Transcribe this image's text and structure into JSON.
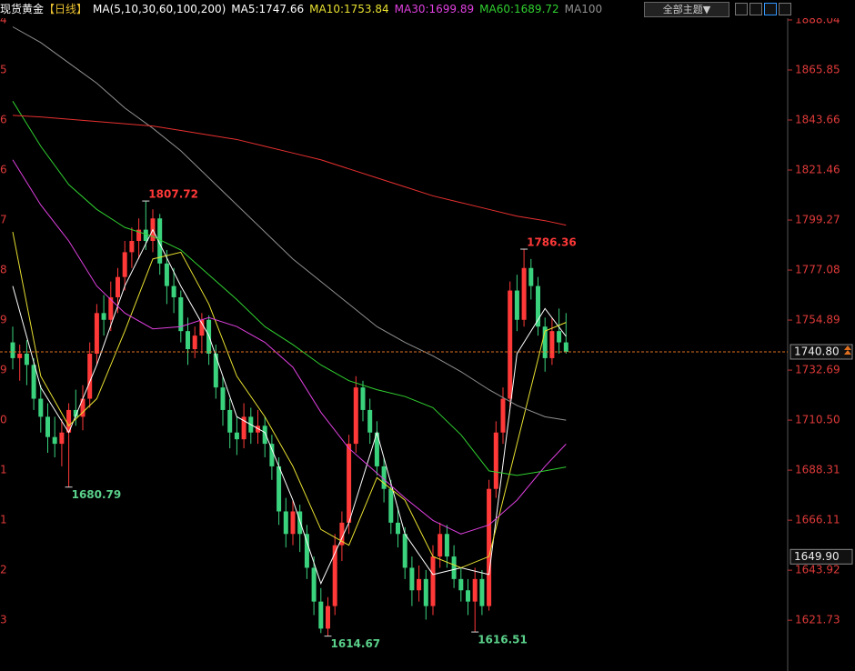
{
  "header": {
    "name": "现货黄金",
    "period": "【日线】",
    "ma_params": "MA(5,10,30,60,100,200)",
    "button": "全部主题▼",
    "legend": [
      {
        "text": "MA5:1747.66",
        "color": "#ffffff"
      },
      {
        "text": "MA10:1753.84",
        "color": "#e8e030"
      },
      {
        "text": "MA30:1699.89",
        "color": "#e040e0"
      },
      {
        "text": "MA60:1689.72",
        "color": "#30d030"
      },
      {
        "text": "MA100",
        "color": "#909090"
      }
    ]
  },
  "chart_data": {
    "type": "candlestick",
    "ylim": [
      1599.2,
      1896.9
    ],
    "yticks": [
      1888.04,
      1865.85,
      1843.66,
      1821.46,
      1799.27,
      1777.08,
      1754.89,
      1732.69,
      {
        "value": 1710.5,
        "label": "1710.50"
      },
      1688.31,
      1666.11,
      1643.92,
      1621.73
    ],
    "left_axis_labels": [
      "4",
      "5",
      "6",
      "6",
      "7",
      "8",
      "9",
      "9",
      "0",
      "1",
      "1",
      "2",
      "3"
    ],
    "up_color": "#ff3838",
    "down_color": "#3ad27d",
    "candles": [
      [
        1745,
        1752,
        1733,
        1738
      ],
      [
        1738,
        1744,
        1728,
        1740
      ],
      [
        1740,
        1746,
        1726,
        1735
      ],
      [
        1735,
        1738,
        1715,
        1720
      ],
      [
        1720,
        1726,
        1705,
        1712
      ],
      [
        1712,
        1718,
        1696,
        1703
      ],
      [
        1703,
        1712,
        1694,
        1700
      ],
      [
        1700,
        1711,
        1690,
        1705
      ],
      [
        1705,
        1718,
        1680.79,
        1715
      ],
      [
        1715,
        1724,
        1708,
        1712
      ],
      [
        1712,
        1726,
        1706,
        1720
      ],
      [
        1720,
        1745,
        1716,
        1740
      ],
      [
        1740,
        1762,
        1735,
        1758
      ],
      [
        1758,
        1766,
        1748,
        1755
      ],
      [
        1755,
        1772,
        1750,
        1765
      ],
      [
        1765,
        1778,
        1758,
        1774
      ],
      [
        1774,
        1790,
        1768,
        1785
      ],
      [
        1785,
        1796,
        1778,
        1790
      ],
      [
        1790,
        1800,
        1782,
        1795
      ],
      [
        1795,
        1807.72,
        1786,
        1790
      ],
      [
        1790,
        1804,
        1785,
        1800
      ],
      [
        1800,
        1802,
        1775,
        1780
      ],
      [
        1780,
        1786,
        1762,
        1770
      ],
      [
        1770,
        1778,
        1758,
        1765
      ],
      [
        1765,
        1768,
        1745,
        1750
      ],
      [
        1750,
        1756,
        1735,
        1742
      ],
      [
        1742,
        1752,
        1738,
        1748
      ],
      [
        1748,
        1758,
        1740,
        1755
      ],
      [
        1755,
        1757,
        1735,
        1740
      ],
      [
        1740,
        1744,
        1720,
        1725
      ],
      [
        1725,
        1730,
        1708,
        1715
      ],
      [
        1715,
        1720,
        1698,
        1705
      ],
      [
        1705,
        1712,
        1695,
        1702
      ],
      [
        1702,
        1718,
        1698,
        1712
      ],
      [
        1712,
        1716,
        1700,
        1705
      ],
      [
        1705,
        1715,
        1700,
        1708
      ],
      [
        1708,
        1712,
        1694,
        1700
      ],
      [
        1700,
        1704,
        1684,
        1690
      ],
      [
        1690,
        1694,
        1664,
        1670
      ],
      [
        1670,
        1676,
        1654,
        1660
      ],
      [
        1660,
        1675,
        1655,
        1670
      ],
      [
        1670,
        1673,
        1652,
        1660
      ],
      [
        1660,
        1664,
        1640,
        1645
      ],
      [
        1645,
        1650,
        1624,
        1630
      ],
      [
        1630,
        1636,
        1616,
        1618
      ],
      [
        1618,
        1632,
        1614.67,
        1628
      ],
      [
        1628,
        1660,
        1624,
        1655
      ],
      [
        1655,
        1670,
        1648,
        1665
      ],
      [
        1665,
        1704,
        1660,
        1700
      ],
      [
        1700,
        1730,
        1696,
        1725
      ],
      [
        1725,
        1728,
        1710,
        1715
      ],
      [
        1715,
        1720,
        1700,
        1705
      ],
      [
        1705,
        1710,
        1686,
        1690
      ],
      [
        1690,
        1694,
        1674,
        1680
      ],
      [
        1680,
        1684,
        1660,
        1665
      ],
      [
        1665,
        1672,
        1654,
        1660
      ],
      [
        1660,
        1663,
        1640,
        1645
      ],
      [
        1645,
        1650,
        1628,
        1635
      ],
      [
        1635,
        1646,
        1630,
        1640
      ],
      [
        1640,
        1644,
        1622,
        1628
      ],
      [
        1628,
        1655,
        1624,
        1650
      ],
      [
        1650,
        1665,
        1645,
        1660
      ],
      [
        1660,
        1664,
        1645,
        1650
      ],
      [
        1650,
        1655,
        1636,
        1640
      ],
      [
        1640,
        1645,
        1630,
        1635
      ],
      [
        1635,
        1640,
        1624,
        1630
      ],
      [
        1630,
        1645,
        1616.51,
        1640
      ],
      [
        1640,
        1644,
        1624,
        1628
      ],
      [
        1628,
        1684,
        1626,
        1680
      ],
      [
        1680,
        1710,
        1676,
        1705
      ],
      [
        1705,
        1725,
        1700,
        1720
      ],
      [
        1720,
        1772,
        1716,
        1768
      ],
      [
        1768,
        1775,
        1750,
        1755
      ],
      [
        1755,
        1786.36,
        1752,
        1778
      ],
      [
        1778,
        1782,
        1764,
        1770
      ],
      [
        1770,
        1774,
        1748,
        1752
      ],
      [
        1752,
        1756,
        1732,
        1738
      ],
      [
        1738,
        1756,
        1735,
        1750
      ],
      [
        1750,
        1760,
        1740,
        1745
      ],
      [
        1745,
        1758,
        1740,
        1740.8
      ]
    ],
    "ma_x": [
      0,
      4,
      8,
      12,
      16,
      20,
      24,
      28,
      32,
      36,
      40,
      44,
      48,
      52,
      56,
      60,
      64,
      68,
      72,
      76,
      79
    ],
    "series": [
      {
        "color": "#ffffff",
        "values": [
          1770,
          1725,
          1705,
          1735,
          1770,
          1795,
          1770,
          1748,
          1712,
          1705,
          1675,
          1638,
          1665,
          1705,
          1660,
          1642,
          1645,
          1642,
          1740,
          1760,
          1747.66
        ]
      },
      {
        "color": "#e8e030",
        "values": [
          1794,
          1730,
          1708,
          1720,
          1750,
          1782,
          1785,
          1762,
          1730,
          1712,
          1690,
          1662,
          1655,
          1685,
          1675,
          1650,
          1645,
          1650,
          1700,
          1750,
          1753.84
        ]
      },
      {
        "color": "#e040e0",
        "values": [
          1826,
          1806,
          1790,
          1770,
          1758,
          1751,
          1752,
          1756,
          1752,
          1745,
          1734,
          1714,
          1698,
          1687,
          1676,
          1666,
          1660,
          1664,
          1675,
          1690,
          1699.89
        ]
      },
      {
        "color": "#30d030",
        "values": [
          1852,
          1832,
          1815,
          1804,
          1796,
          1792,
          1786,
          1775,
          1764,
          1752,
          1744,
          1735,
          1728,
          1724,
          1721,
          1716,
          1704,
          1688,
          1686,
          1688,
          1689.72
        ]
      },
      {
        "color": "#909090",
        "values": [
          1885,
          1878,
          1869,
          1860,
          1849,
          1840,
          1830,
          1818,
          1806,
          1794,
          1782,
          1772,
          1762,
          1752,
          1745,
          1739,
          1732,
          1724,
          1717,
          1712,
          1710.5
        ]
      },
      {
        "color": "#e83030",
        "values": [
          1845.7,
          1845,
          1844,
          1843,
          1842,
          1841,
          1839,
          1837,
          1835,
          1832,
          1829,
          1826,
          1822,
          1818,
          1814,
          1810,
          1807,
          1804,
          1801,
          1799,
          1797
        ]
      }
    ],
    "extreme_labels": [
      1807.72,
      1786.36,
      1680.79,
      1614.67,
      1616.51
    ],
    "last_price": {
      "value": 1740.8,
      "label": "1740.80"
    },
    "marker_price": {
      "value": 1649.9,
      "label": "1649.90"
    }
  }
}
